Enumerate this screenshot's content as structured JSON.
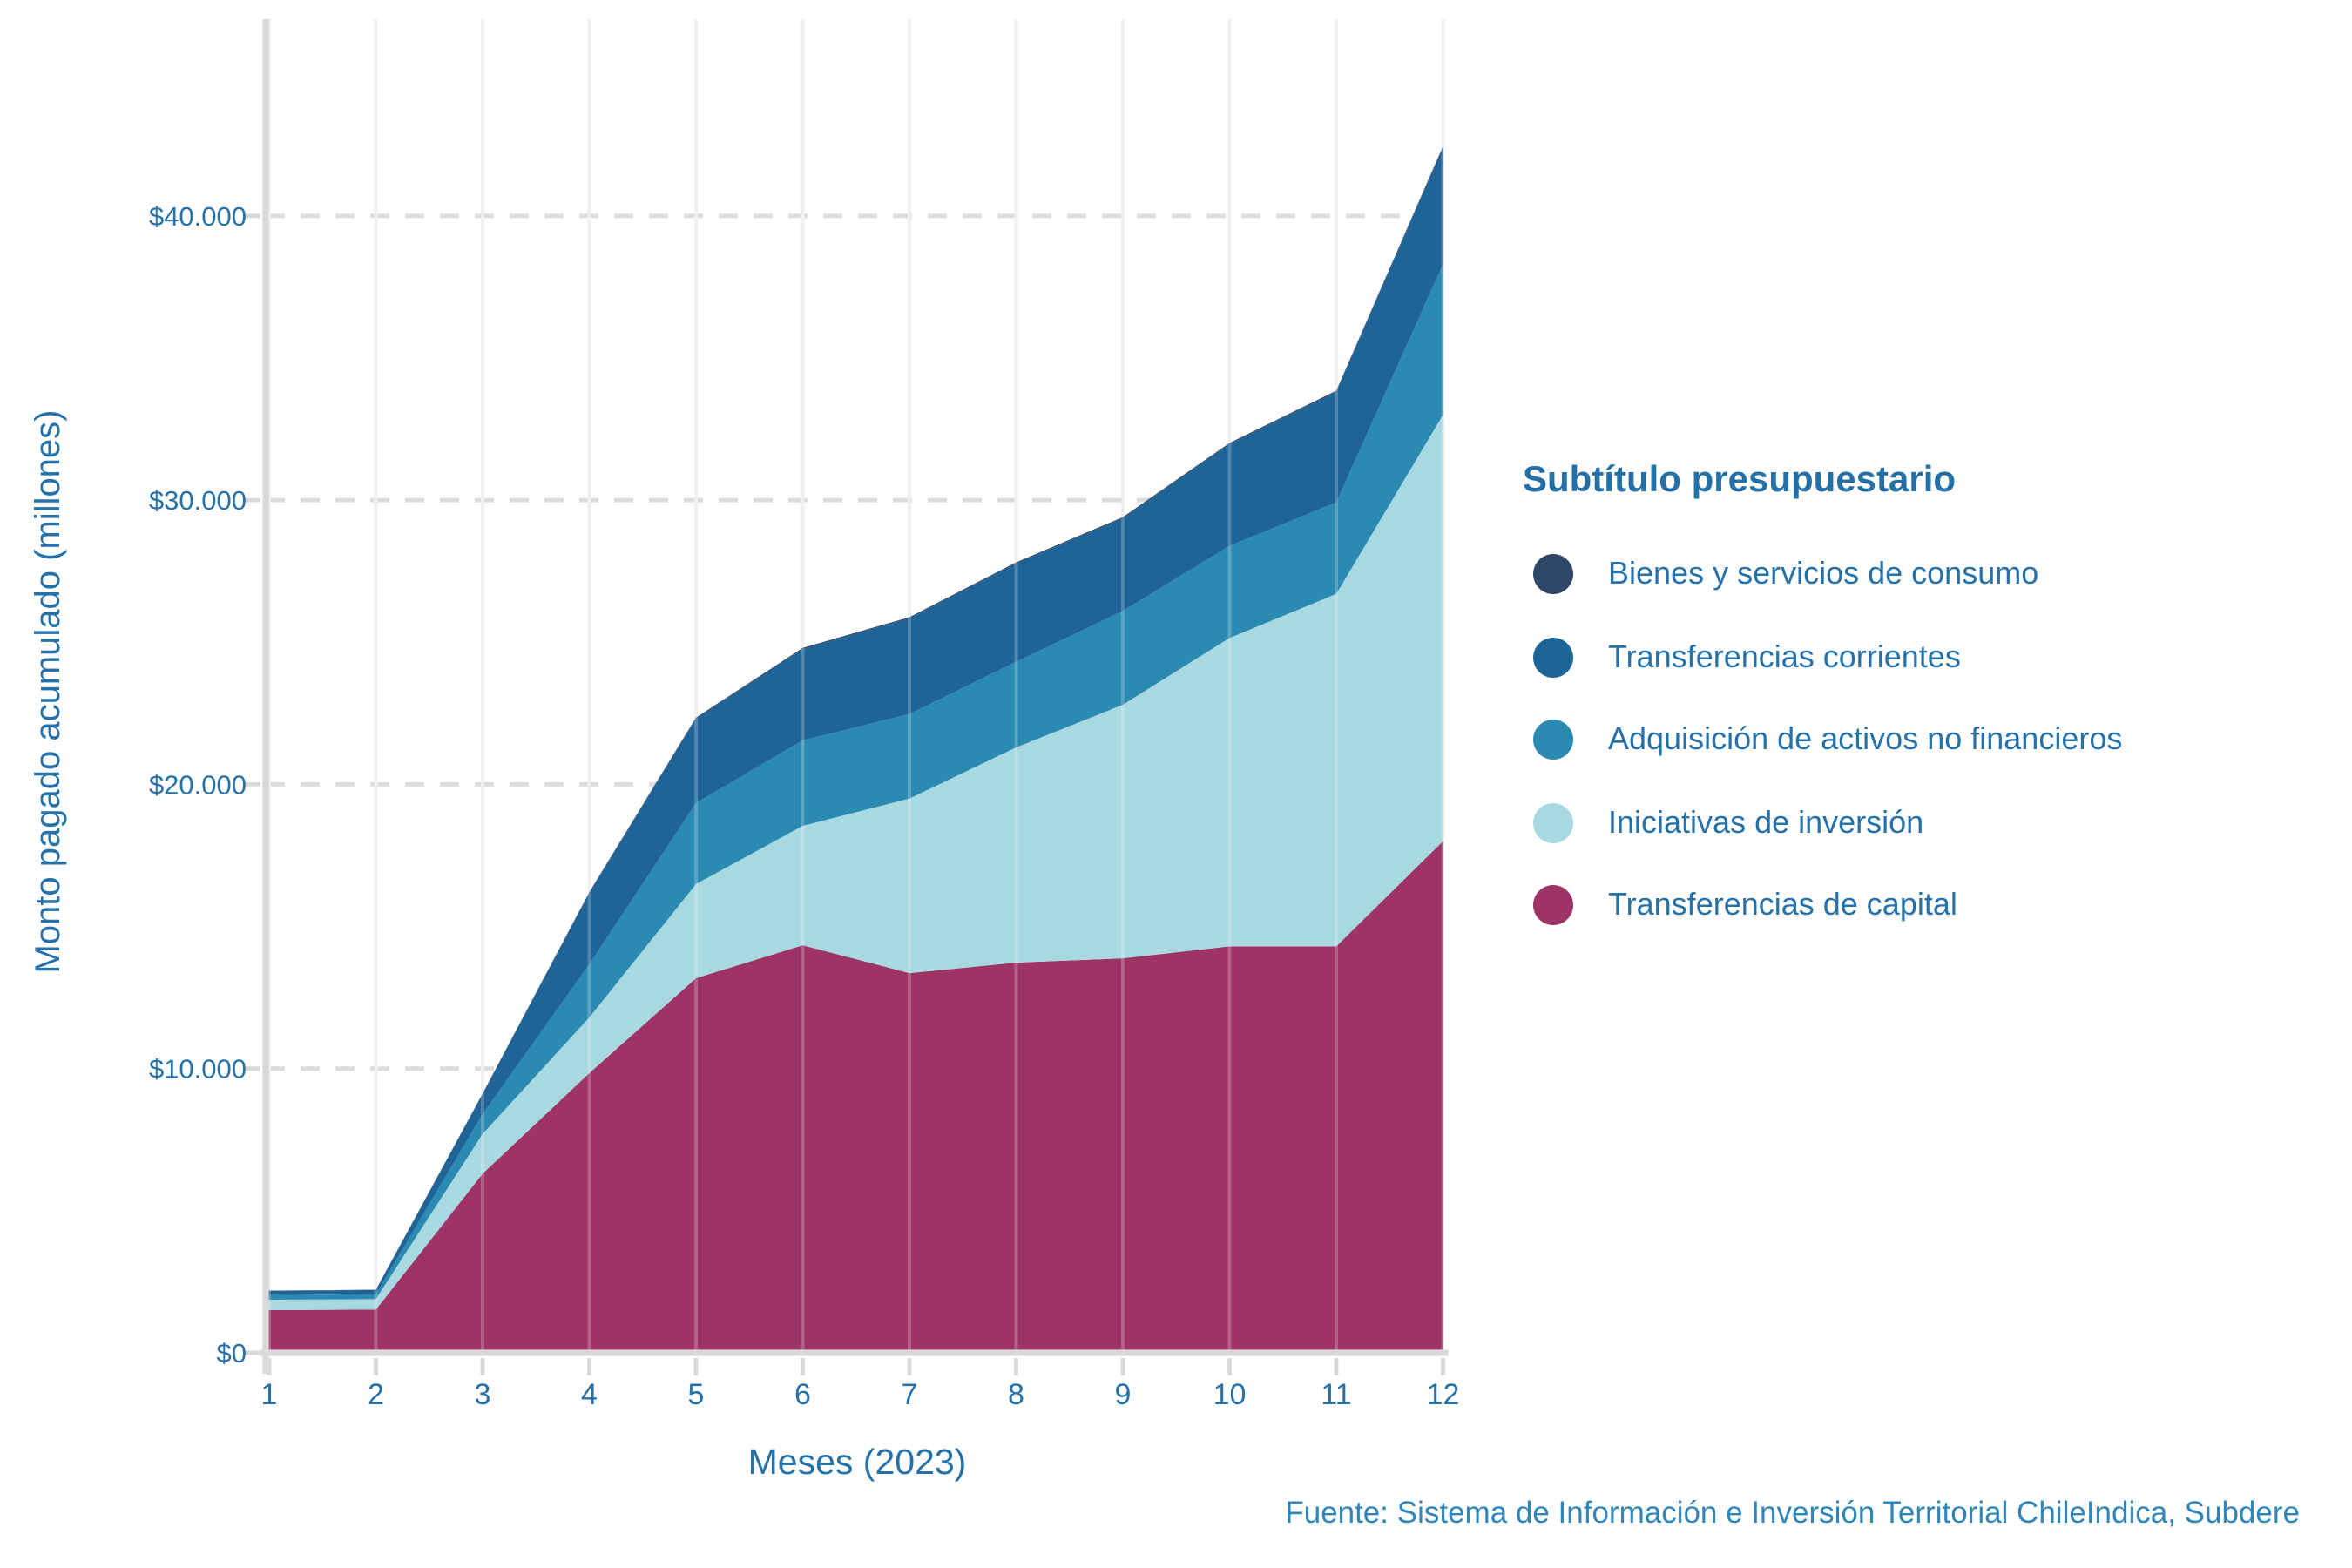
{
  "chart_data": {
    "type": "area",
    "stacked": true,
    "x_label": "Meses (2023)",
    "y_label": "Monto pagado acumulado (millones)",
    "x": [
      1,
      2,
      3,
      4,
      5,
      6,
      7,
      8,
      9,
      10,
      11,
      12
    ],
    "x_tick_labels": [
      "1",
      "2",
      "3",
      "4",
      "5",
      "6",
      "7",
      "8",
      "9",
      "10",
      "11",
      "12"
    ],
    "y_ticks": [
      {
        "value": 0,
        "label": "$0"
      },
      {
        "value": 10000,
        "label": "$10.000"
      },
      {
        "value": 20000,
        "label": "$20.000"
      },
      {
        "value": 30000,
        "label": "$30.000"
      },
      {
        "value": 40000,
        "label": "$40.000"
      }
    ],
    "ylim": [
      0,
      46900
    ],
    "grid": {
      "vertical": "solid",
      "horizontal": "dashed"
    },
    "series": [
      {
        "name": "Transferencias de capital",
        "color": "#9e3466",
        "values": [
          1500,
          1520,
          6300,
          9840,
          13180,
          14340,
          13360,
          13730,
          13880,
          14300,
          14300,
          18000
        ]
      },
      {
        "name": "Iniciativas de inversión",
        "color": "#a8d8e0",
        "values": [
          370,
          370,
          1400,
          1960,
          3310,
          4200,
          6140,
          7570,
          8920,
          10850,
          12400,
          15000
        ]
      },
      {
        "name": "Adquisición de activos no financieros",
        "color": "#2b8ab2",
        "values": [
          160,
          170,
          700,
          1870,
          2850,
          3010,
          2970,
          3010,
          3300,
          3240,
          3220,
          5300
        ]
      },
      {
        "name": "Transferencias corrientes",
        "color": "#1f6496",
        "values": [
          150,
          150,
          700,
          2510,
          2970,
          3210,
          3370,
          3460,
          3260,
          3580,
          3890,
          4100
        ]
      },
      {
        "name": "Bienes y servicios de consumo",
        "color": "#2e4668",
        "values": [
          10,
          10,
          20,
          30,
          40,
          40,
          40,
          40,
          40,
          40,
          40,
          50
        ]
      }
    ],
    "legend": {
      "title": "Subtítulo presupuestario",
      "position": "right",
      "order": [
        "Bienes y servicios de consumo",
        "Transferencias corrientes",
        "Adquisición de activos no financieros",
        "Iniciativas de inversión",
        "Transferencias de capital"
      ]
    },
    "source": "Fuente: Sistema de Información e Inversión Territorial ChileIndica, Subdere"
  },
  "colors": {
    "text": "#2571a9",
    "source_text": "#2e86ba",
    "grid_vertical": "#ececec",
    "grid_horizontal": "#dcdcdc",
    "axis": "#d9d9d9",
    "background": "#ffffff"
  }
}
